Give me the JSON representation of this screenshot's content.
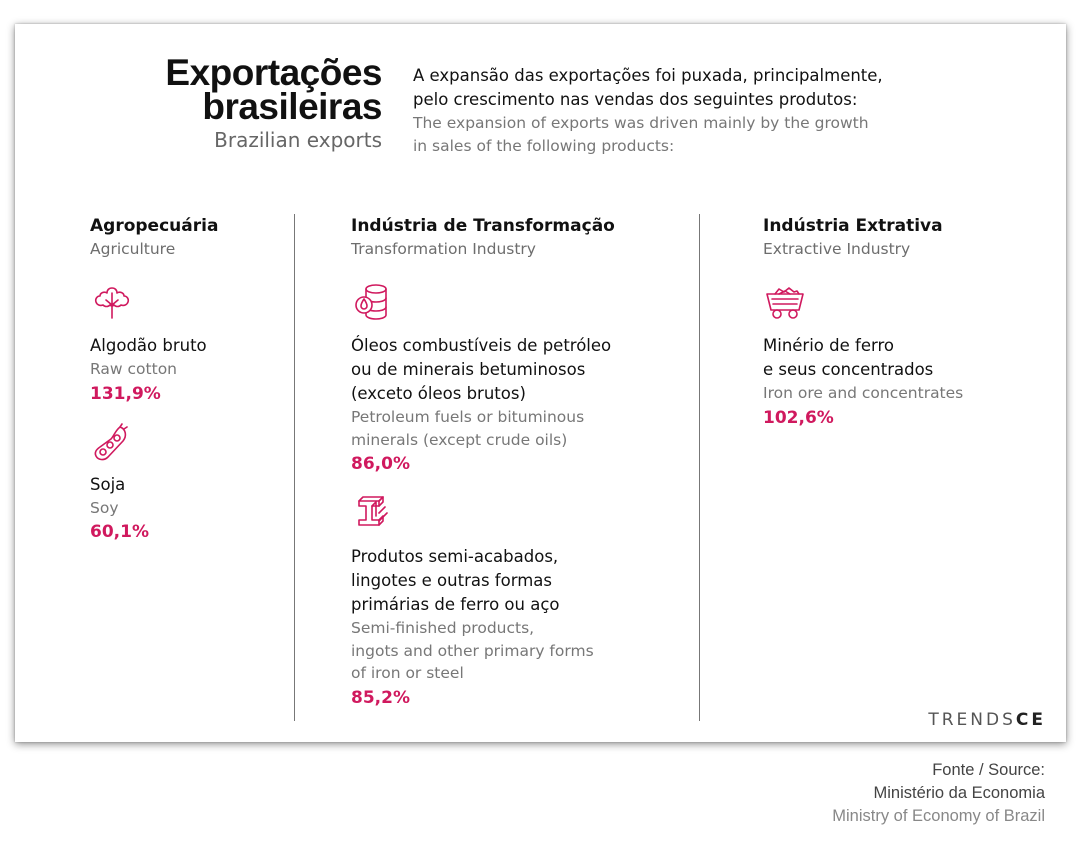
{
  "title": {
    "line1": "Exportações",
    "line2": "brasileiras",
    "subtitle": "Brazilian exports"
  },
  "intro": {
    "pt_line1": "A expansão das exportações foi puxada, principalmente,",
    "pt_line2": "pelo crescimento nas vendas dos seguintes produtos:",
    "en_line1": "The expansion of exports was driven mainly by the growth",
    "en_line2": "in sales of the following products:"
  },
  "categories": {
    "agro": {
      "pt": "Agropecuária",
      "en": "Agriculture",
      "products": [
        {
          "icon": "cotton-icon",
          "pt": [
            "Algodão bruto"
          ],
          "en": [
            "Raw cotton"
          ],
          "pct": "131,9%"
        },
        {
          "icon": "soy-icon",
          "pt": [
            "Soja"
          ],
          "en": [
            "Soy"
          ],
          "pct": "60,1%"
        }
      ]
    },
    "trans": {
      "pt": "Indústria de Transformação",
      "en": "Transformation Industry",
      "products": [
        {
          "icon": "oil-barrel-icon",
          "pt": [
            "Óleos combustíveis de petróleo",
            "ou de minerais betuminosos",
            "(exceto óleos brutos)"
          ],
          "en": [
            "Petroleum fuels or bituminous",
            "minerals (except crude oils)"
          ],
          "pct": "86,0%"
        },
        {
          "icon": "steel-beam-icon",
          "pt": [
            "Produtos semi-acabados,",
            "lingotes e outras formas",
            "primárias de ferro ou aço"
          ],
          "en": [
            "Semi-finished products,",
            "ingots and other primary forms",
            "of iron or steel"
          ],
          "pct": "85,2%"
        }
      ]
    },
    "ext": {
      "pt": "Indústria Extrativa",
      "en": "Extractive Industry",
      "products": [
        {
          "icon": "ore-cart-icon",
          "pt": [
            "Minério de ferro",
            "e seus concentrados"
          ],
          "en": [
            "Iron ore and concentrates"
          ],
          "pct": "102,6%"
        }
      ]
    }
  },
  "logo": {
    "part1": "TRENDS",
    "part2": "CE"
  },
  "source": {
    "line1": "Fonte / Source:",
    "line2": "Ministério da Economia",
    "line3": "Ministry of Economy of Brazil"
  },
  "colors": {
    "accent": "#d0195e"
  }
}
